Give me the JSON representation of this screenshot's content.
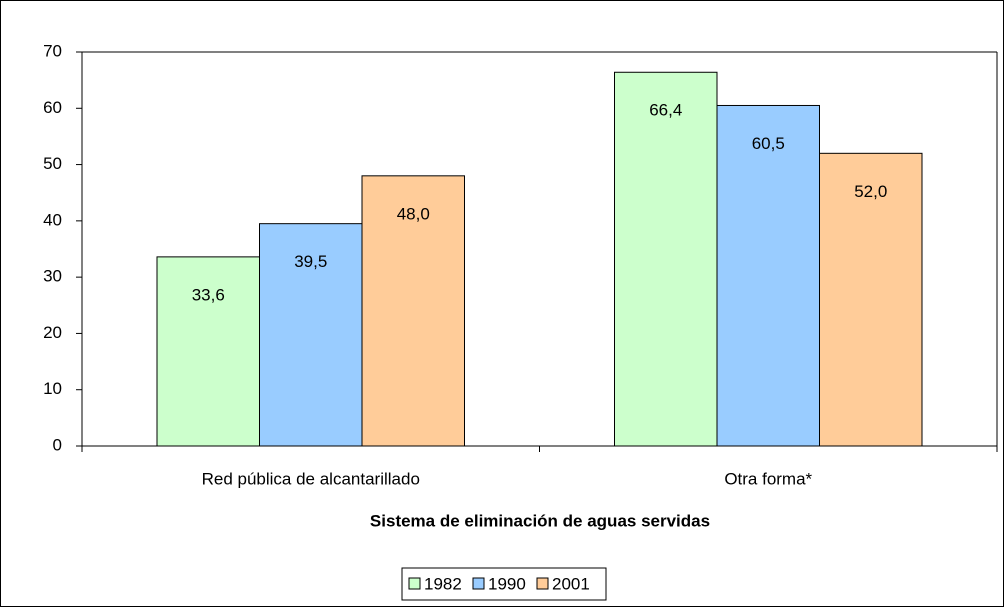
{
  "chart_data": {
    "type": "bar",
    "x_label": "Sistema de eliminación de aguas servidas",
    "categories": [
      "Red pública de alcantarillado",
      "Otra forma*"
    ],
    "series": [
      {
        "name": "1982",
        "color": "#ccffcc",
        "values": [
          33.6,
          66.4
        ],
        "value_labels": [
          "33,6",
          "66,4"
        ]
      },
      {
        "name": "1990",
        "color": "#99ccff",
        "values": [
          39.5,
          60.5
        ],
        "value_labels": [
          "39,5",
          "60,5"
        ]
      },
      {
        "name": "2001",
        "color": "#ffcc99",
        "values": [
          48.0,
          52.0
        ],
        "value_labels": [
          "48,0",
          "52,0"
        ]
      }
    ],
    "ylim": [
      0,
      70
    ],
    "yticks": [
      0,
      10,
      20,
      30,
      40,
      50,
      60,
      70
    ],
    "grid": false,
    "legend": "bottom"
  }
}
